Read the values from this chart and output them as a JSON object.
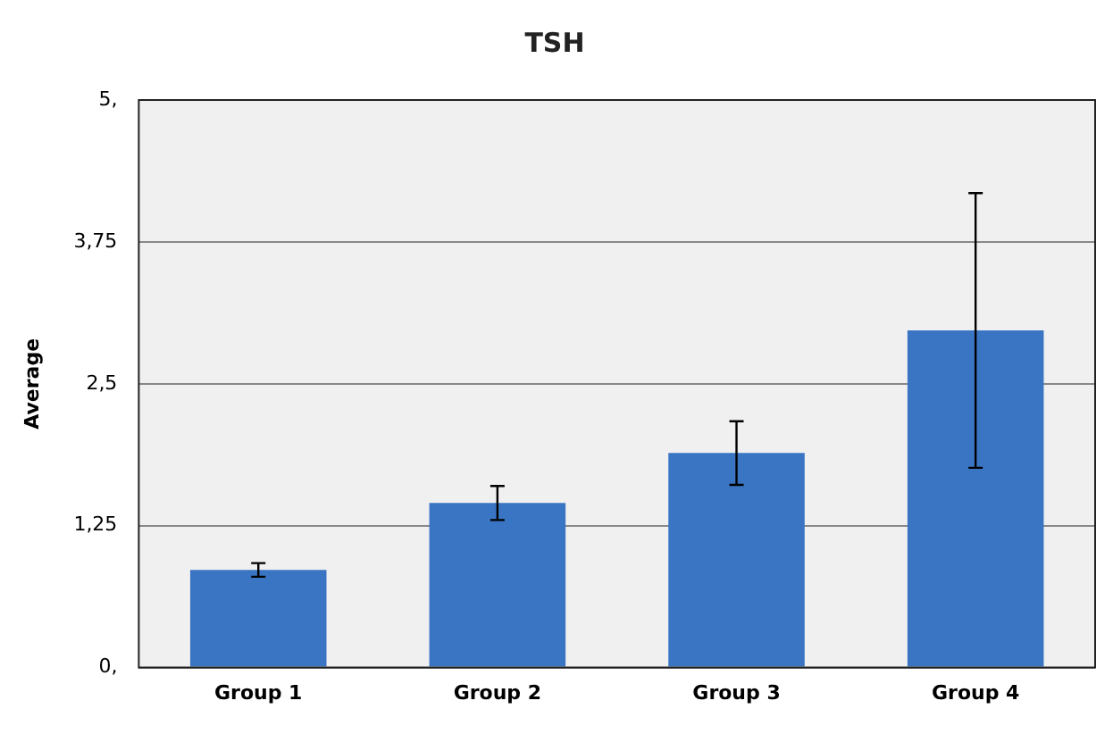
{
  "chart_data": {
    "type": "bar",
    "title": "TSH",
    "ylabel": "Average",
    "categories": [
      "Group 1",
      "Group 2",
      "Group 3",
      "Group 4"
    ],
    "values": [
      0.86,
      1.45,
      1.89,
      2.97
    ],
    "errors": [
      0.06,
      0.15,
      0.28,
      1.21
    ],
    "color": "#3a75c4",
    "ylim": [
      0,
      5
    ],
    "yticks": [
      {
        "value": 0,
        "label": "0,"
      },
      {
        "value": 1.25,
        "label": "1,25"
      },
      {
        "value": 2.5,
        "label": "2,5"
      },
      {
        "value": 3.75,
        "label": "3,75"
      },
      {
        "value": 5,
        "label": "5,"
      }
    ],
    "grid": "y",
    "legend": false
  }
}
